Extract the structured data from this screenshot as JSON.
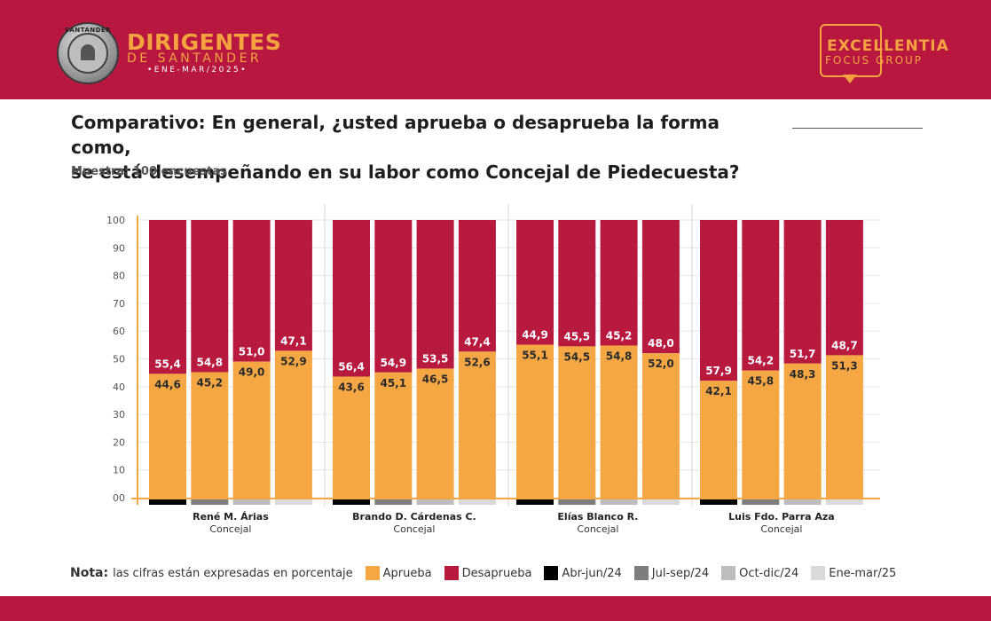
{
  "header": {
    "brand_title": "DIRIGENTES",
    "brand_subtitle": "DE SANTANDER",
    "brand_date": "•ENE-MAR/2025•",
    "seal_text": "SANTANDER",
    "partner_title": "EXCELLENTIA",
    "partner_subtitle": "FOCUS GROUP"
  },
  "colors": {
    "brand": "#b8183f",
    "accent": "#f5a240",
    "aprueba": "#f5a744",
    "desaprueba": "#b8193f",
    "abr_jun_24": "#000000",
    "jul_sep_24": "#7d7d7d",
    "oct_dic_24": "#bdbdbd",
    "ene_mar_25": "#d9d9d9"
  },
  "question": {
    "line1": "Comparativo: En general, ¿usted aprueba o desaprueba la forma como,",
    "line2": "se está desempeñando en su labor como Concejal de Piedecuesta?",
    "sample": "Muestra: 100 encuestas"
  },
  "legend": {
    "nota_label": "Nota:",
    "nota_text": "las cifras están expresadas en porcentaje",
    "items": [
      {
        "label": "Aprueba",
        "color": "#f5a744"
      },
      {
        "label": "Desaprueba",
        "color": "#b8193f"
      },
      {
        "label": "Abr-jun/24",
        "color": "#000000"
      },
      {
        "label": "Jul-sep/24",
        "color": "#7d7d7d"
      },
      {
        "label": "Oct-dic/24",
        "color": "#bdbdbd"
      },
      {
        "label": "Ene-mar/25",
        "color": "#d9d9d9"
      }
    ]
  },
  "chart_data": {
    "type": "bar",
    "stacked": true,
    "ylim": [
      0,
      100
    ],
    "yticks": [
      "00",
      "10",
      "20",
      "30",
      "40",
      "50",
      "60",
      "70",
      "80",
      "90",
      "100"
    ],
    "periods": [
      "Abr-jun/24",
      "Jul-sep/24",
      "Oct-dic/24",
      "Ene-mar/25"
    ],
    "groups": [
      {
        "name": "René M. Árias",
        "role": "Concejal",
        "aprueba": [
          "44,6",
          "45,2",
          "49,0",
          "52,9"
        ],
        "desaprueba": [
          "55,4",
          "54,8",
          "51,0",
          "47,1"
        ]
      },
      {
        "name": "Brando D. Cárdenas C.",
        "role": "Concejal",
        "aprueba": [
          "43,6",
          "45,1",
          "46,5",
          "52,6"
        ],
        "desaprueba": [
          "56,4",
          "54,9",
          "53,5",
          "47,4"
        ]
      },
      {
        "name": "Elías Blanco R.",
        "role": "Concejal",
        "aprueba": [
          "55,1",
          "54,5",
          "54,8",
          "52,0"
        ],
        "desaprueba": [
          "44,9",
          "45,5",
          "45,2",
          "48,0"
        ]
      },
      {
        "name": "Luis Fdo. Parra Aza",
        "role": "Concejal",
        "aprueba": [
          "42,1",
          "45,8",
          "48,3",
          "51,3"
        ],
        "desaprueba": [
          "57,9",
          "54,2",
          "51,7",
          "48,7"
        ]
      }
    ]
  }
}
